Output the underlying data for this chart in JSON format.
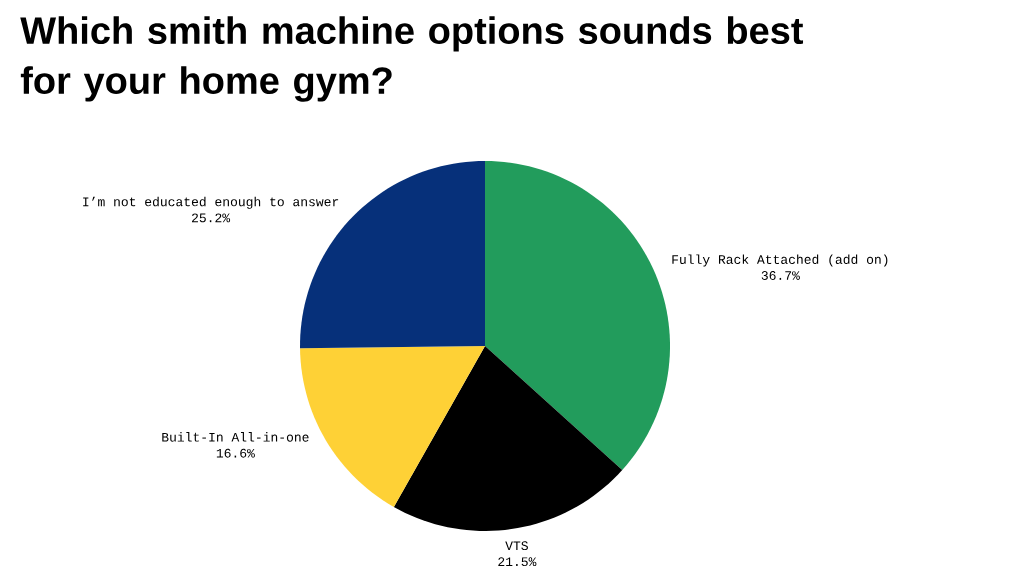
{
  "chart_data": {
    "type": "pie",
    "title": "Which smith machine options sounds best for your home gym?",
    "categories": [
      "Fully Rack Attached (add on)",
      "VTS",
      "Built-In All-in-one",
      "I’m not educated enough to answer"
    ],
    "values": [
      36.7,
      21.5,
      16.6,
      25.2
    ],
    "value_labels": [
      "36.7%",
      "21.5%",
      "16.6%",
      "25.2%"
    ],
    "colors": [
      "#229c5c",
      "#000000",
      "#fed136",
      "#06307a"
    ]
  }
}
